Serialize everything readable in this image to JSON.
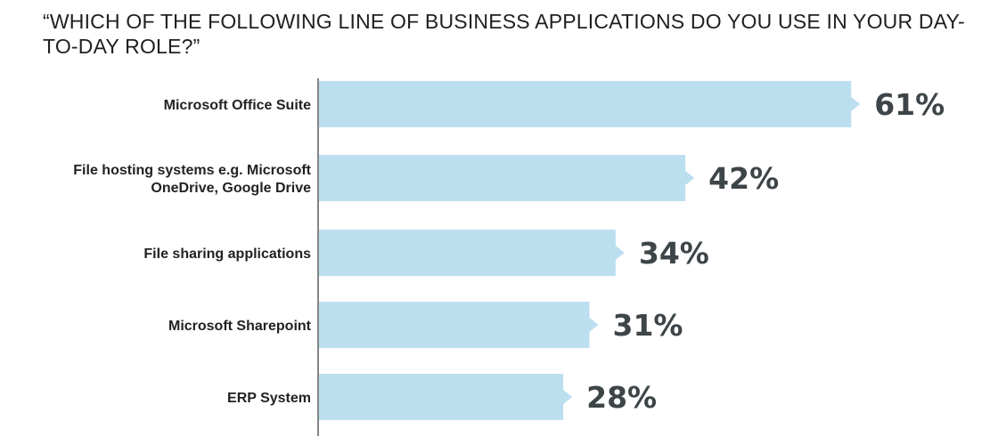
{
  "chart_data": {
    "type": "bar",
    "orientation": "horizontal",
    "title": "“WHICH OF THE FOLLOWING LINE OF BUSINESS APPLICATIONS DO YOU USE IN YOUR DAY-TO-DAY ROLE?”",
    "categories": [
      [
        "Microsoft Office Suite"
      ],
      [
        "File hosting systems e.g. Microsoft",
        "OneDrive, Google Drive"
      ],
      [
        "File sharing applications"
      ],
      [
        "Microsoft Sharepoint"
      ],
      [
        "ERP System"
      ]
    ],
    "values": [
      61,
      42,
      34,
      31,
      28
    ],
    "data_labels": [
      "61%",
      "42%",
      "34%",
      "31%",
      "28%"
    ],
    "xlim": [
      0,
      70
    ],
    "grid": false,
    "bar_color": "#bcdff0",
    "label_color": "#3d4548"
  }
}
